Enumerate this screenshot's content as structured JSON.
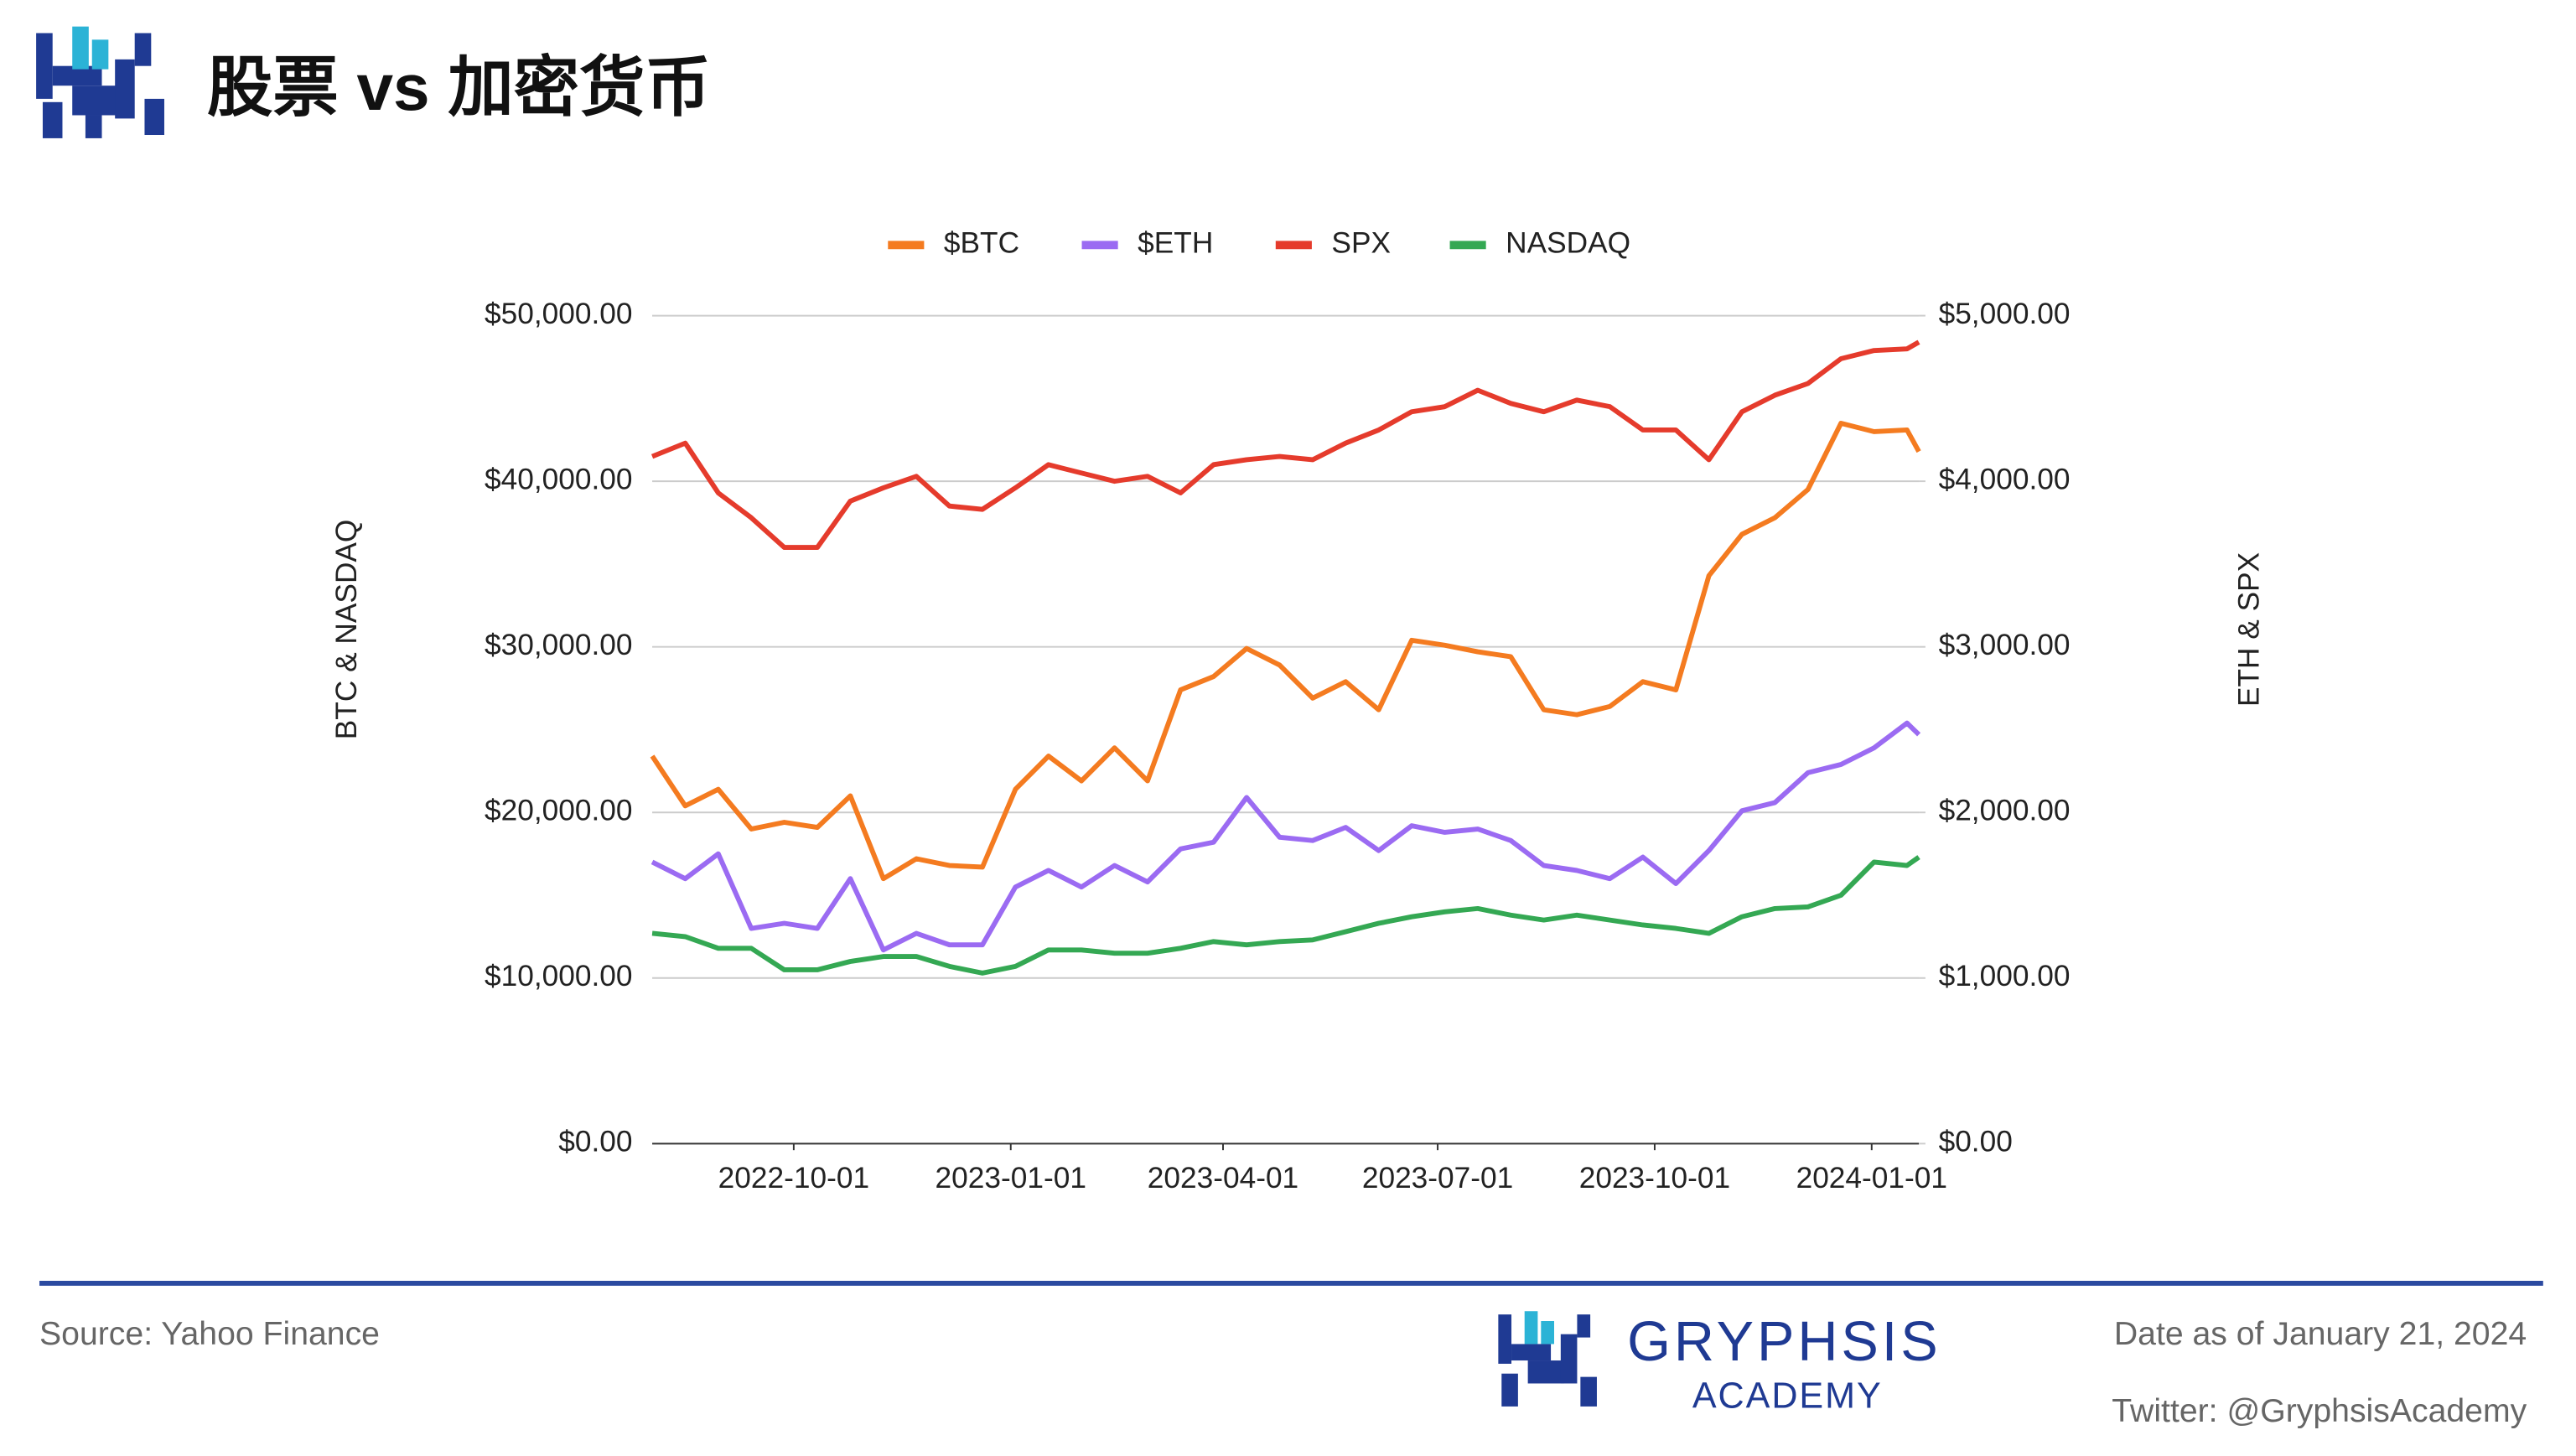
{
  "chart_data": {
    "type": "line",
    "title": "股票 vs 加密货币",
    "y_label": "BTC & NASDAQ",
    "y2_label": "ETH & SPX",
    "legend": "top",
    "grid": true,
    "xlim": [
      "2022-08-02",
      "2024-01-21"
    ],
    "xticks": [
      "2022-10-01",
      "2023-01-01",
      "2023-04-01",
      "2023-07-01",
      "2023-10-01",
      "2024-01-01"
    ],
    "ylim": [
      0,
      50000
    ],
    "yticks": [
      {
        "value": 0,
        "label": "$0.00"
      },
      {
        "value": 10000,
        "label": "$10,000.00"
      },
      {
        "value": 20000,
        "label": "$20,000.00"
      },
      {
        "value": 30000,
        "label": "$30,000.00"
      },
      {
        "value": 40000,
        "label": "$40,000.00"
      },
      {
        "value": 50000,
        "label": "$50,000.00"
      }
    ],
    "y2lim": [
      0,
      5000
    ],
    "y2ticks": [
      {
        "value": 0,
        "label": "$0.00"
      },
      {
        "value": 1000,
        "label": "$1,000.00"
      },
      {
        "value": 2000,
        "label": "$2,000.00"
      },
      {
        "value": 3000,
        "label": "$3,000.00"
      },
      {
        "value": 4000,
        "label": "$4,000.00"
      },
      {
        "value": 5000,
        "label": "$5,000.00"
      }
    ],
    "x": [
      "2022-08-02",
      "2022-08-16",
      "2022-08-30",
      "2022-09-13",
      "2022-09-27",
      "2022-10-11",
      "2022-10-25",
      "2022-11-08",
      "2022-11-22",
      "2022-12-06",
      "2022-12-20",
      "2023-01-03",
      "2023-01-17",
      "2023-01-31",
      "2023-02-14",
      "2023-02-28",
      "2023-03-14",
      "2023-03-28",
      "2023-04-11",
      "2023-04-25",
      "2023-05-09",
      "2023-05-23",
      "2023-06-06",
      "2023-06-20",
      "2023-07-04",
      "2023-07-18",
      "2023-08-01",
      "2023-08-15",
      "2023-08-29",
      "2023-09-12",
      "2023-09-26",
      "2023-10-10",
      "2023-10-24",
      "2023-11-07",
      "2023-11-21",
      "2023-12-05",
      "2023-12-19",
      "2024-01-02",
      "2024-01-16",
      "2024-01-21"
    ],
    "series": [
      {
        "name": "$BTC",
        "color": "#f47b20",
        "values": [
          23400,
          20400,
          21400,
          19000,
          19400,
          19100,
          21000,
          16000,
          17200,
          16800,
          16700,
          21400,
          23400,
          21900,
          23900,
          21900,
          27400,
          28200,
          29900,
          28900,
          26900,
          27900,
          26200,
          30400,
          30100,
          29700,
          29400,
          26200,
          25900,
          26400,
          27900,
          27400,
          34300,
          36800,
          37800,
          39500,
          43500,
          43000,
          43100,
          41800
        ]
      },
      {
        "name": "$ETH",
        "color": "#9b6bf2",
        "axis": "y2",
        "values": [
          1700,
          1600,
          1750,
          1300,
          1330,
          1300,
          1600,
          1170,
          1270,
          1200,
          1200,
          1550,
          1650,
          1550,
          1680,
          1580,
          1780,
          1820,
          2090,
          1850,
          1830,
          1910,
          1770,
          1920,
          1880,
          1900,
          1830,
          1680,
          1650,
          1600,
          1730,
          1570,
          1770,
          2010,
          2060,
          2240,
          2290,
          2390,
          2540,
          2470
        ]
      },
      {
        "name": "SPX",
        "color": "#e53b2c",
        "axis": "y2",
        "values": [
          4150,
          4230,
          3930,
          3780,
          3600,
          3600,
          3880,
          3960,
          4030,
          3850,
          3830,
          3960,
          4100,
          4050,
          4000,
          4030,
          3930,
          4100,
          4130,
          4150,
          4130,
          4230,
          4310,
          4420,
          4450,
          4550,
          4470,
          4420,
          4490,
          4450,
          4310,
          4310,
          4130,
          4420,
          4520,
          4590,
          4740,
          4790,
          4800,
          4840
        ]
      },
      {
        "name": "NASDAQ",
        "color": "#34a853",
        "values": [
          12700,
          12500,
          11800,
          11800,
          10500,
          10500,
          11000,
          11300,
          11300,
          10700,
          10300,
          10700,
          11700,
          11700,
          11500,
          11500,
          11800,
          12200,
          12000,
          12200,
          12300,
          12800,
          13300,
          13700,
          14000,
          14200,
          13800,
          13500,
          13800,
          13500,
          13200,
          13000,
          12700,
          13700,
          14200,
          14300,
          15000,
          17000,
          16800,
          17300
        ]
      }
    ]
  },
  "footer": {
    "source": "Source: Yahoo Finance",
    "brand": "GRYPHSIS",
    "brand_sub": "ACADEMY",
    "date": "Date as of January 21, 2024",
    "twitter": "Twitter: @GryphsisAcademy"
  }
}
